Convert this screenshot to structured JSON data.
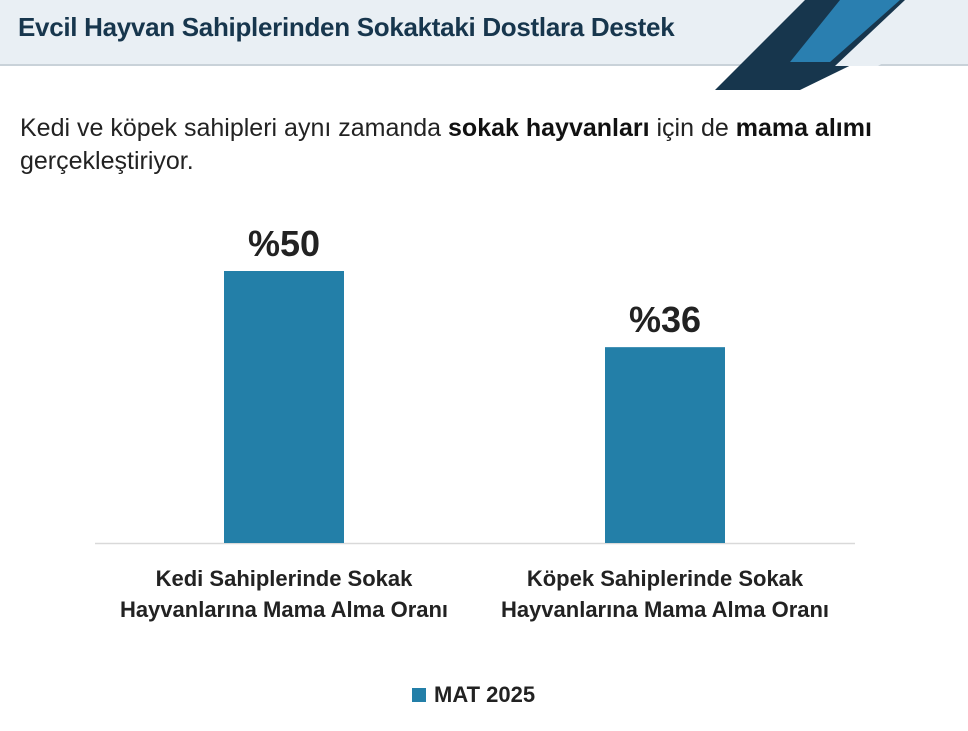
{
  "chart_data": {
    "type": "bar",
    "title": "Evcil Hayvan Sahiplerinden Sokaktaki Dostlara Destek",
    "subtitle": [
      {
        "text": "Kedi ve köpek sahipleri aynı zamanda ",
        "bold": false
      },
      {
        "text": "sokak hayvanları",
        "bold": true
      },
      {
        "text": " için de ",
        "bold": false
      },
      {
        "text": "mama alımı",
        "bold": true
      },
      {
        "text": " gerçekleştiriyor.",
        "bold": false
      }
    ],
    "categories": [
      "Kedi Sahiplerinde Sokak Hayvanlarına Mama Alma Oranı",
      "Köpek Sahiplerinde Sokak Hayvanlarına Mama Alma Oranı"
    ],
    "series": [
      {
        "name": "MAT 2025",
        "color": "#237fa8",
        "values": [
          50,
          36
        ],
        "value_labels": [
          "%50",
          "%36"
        ]
      }
    ]
  }
}
